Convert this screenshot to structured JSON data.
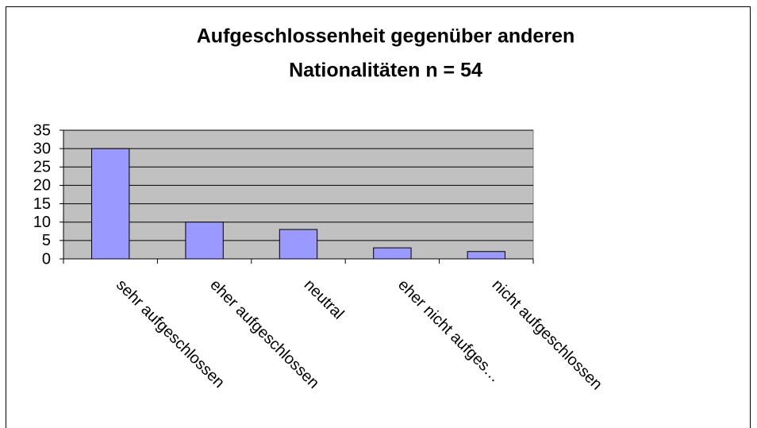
{
  "chart_data": {
    "type": "bar",
    "title": [
      "Aufgeschlossenheit gegenüber anderen",
      "Nationalitäten n = 54"
    ],
    "categories": [
      "sehr aufgeschlossen",
      "eher aufgeschlossen",
      "neutral",
      "eher nicht aufges…",
      "nicht aufgeschlossen"
    ],
    "values": [
      30,
      10,
      8,
      3,
      2
    ],
    "color": "#9999ff",
    "ylim": [
      0,
      35
    ],
    "yticks": [
      0,
      5,
      10,
      15,
      20,
      25,
      30,
      35
    ],
    "grid": true
  }
}
